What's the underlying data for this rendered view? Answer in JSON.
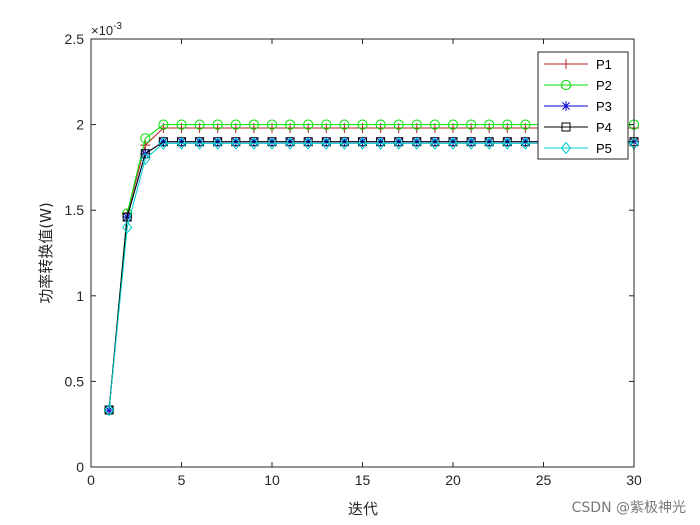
{
  "chart_data": {
    "type": "line",
    "title": "",
    "xlabel": "迭代",
    "ylabel": "功率转换值(W)",
    "xlim": [
      0,
      30
    ],
    "ylim": [
      0,
      0.0025
    ],
    "xticks": [
      0,
      5,
      10,
      15,
      20,
      25,
      30
    ],
    "xtick_labels": [
      "0",
      "5",
      "10",
      "15",
      "20",
      "25",
      "30"
    ],
    "yticks": [
      0,
      0.0005,
      0.001,
      0.0015,
      0.002,
      0.0025
    ],
    "ytick_labels": [
      "0",
      "0.5",
      "1",
      "1.5",
      "2",
      "2.5"
    ],
    "y_exponent_label": "×10",
    "y_exponent_power": "-3",
    "legend_position": "top-right",
    "grid": false,
    "series": [
      {
        "name": "P1",
        "color": "#b22222",
        "marker": "plus",
        "x": [
          1,
          2,
          3,
          4,
          5,
          6,
          7,
          8,
          9,
          10,
          11,
          12,
          13,
          14,
          15,
          16,
          17,
          18,
          19,
          20,
          21,
          22,
          23,
          24,
          25,
          26,
          27,
          28,
          29,
          30
        ],
        "y": [
          0.000333,
          0.00148,
          0.00188,
          0.00198,
          0.00198,
          0.00198,
          0.00198,
          0.00198,
          0.00198,
          0.00198,
          0.00198,
          0.00198,
          0.00198,
          0.00198,
          0.00198,
          0.00198,
          0.00198,
          0.00198,
          0.00198,
          0.00198,
          0.00198,
          0.00198,
          0.00198,
          0.00198,
          0.00198,
          0.00198,
          0.00198,
          0.00198,
          0.00198,
          0.00198
        ]
      },
      {
        "name": "P2",
        "color": "#00e000",
        "marker": "circle",
        "x": [
          1,
          2,
          3,
          4,
          5,
          6,
          7,
          8,
          9,
          10,
          11,
          12,
          13,
          14,
          15,
          16,
          17,
          18,
          19,
          20,
          21,
          22,
          23,
          24,
          25,
          26,
          27,
          28,
          29,
          30
        ],
        "y": [
          0.000333,
          0.00148,
          0.00192,
          0.002,
          0.002,
          0.002,
          0.002,
          0.002,
          0.002,
          0.002,
          0.002,
          0.002,
          0.002,
          0.002,
          0.002,
          0.002,
          0.002,
          0.002,
          0.002,
          0.002,
          0.002,
          0.002,
          0.002,
          0.002,
          0.002,
          0.002,
          0.002,
          0.002,
          0.002,
          0.002
        ]
      },
      {
        "name": "P3",
        "color": "#0000cc",
        "marker": "star",
        "x": [
          1,
          2,
          3,
          4,
          5,
          6,
          7,
          8,
          9,
          10,
          11,
          12,
          13,
          14,
          15,
          16,
          17,
          18,
          19,
          20,
          21,
          22,
          23,
          24,
          25,
          26,
          27,
          28,
          29,
          30
        ],
        "y": [
          0.000333,
          0.00146,
          0.00183,
          0.0019,
          0.0019,
          0.0019,
          0.0019,
          0.0019,
          0.0019,
          0.0019,
          0.0019,
          0.0019,
          0.0019,
          0.0019,
          0.0019,
          0.0019,
          0.0019,
          0.0019,
          0.0019,
          0.0019,
          0.0019,
          0.0019,
          0.0019,
          0.0019,
          0.0019,
          0.0019,
          0.0019,
          0.0019,
          0.0019,
          0.0019
        ]
      },
      {
        "name": "P4",
        "color": "#000000",
        "marker": "square",
        "x": [
          1,
          2,
          3,
          4,
          5,
          6,
          7,
          8,
          9,
          10,
          11,
          12,
          13,
          14,
          15,
          16,
          17,
          18,
          19,
          20,
          21,
          22,
          23,
          24,
          25,
          26,
          27,
          28,
          29,
          30
        ],
        "y": [
          0.000333,
          0.00146,
          0.00183,
          0.0019,
          0.0019,
          0.0019,
          0.0019,
          0.0019,
          0.0019,
          0.0019,
          0.0019,
          0.0019,
          0.0019,
          0.0019,
          0.0019,
          0.0019,
          0.0019,
          0.0019,
          0.0019,
          0.0019,
          0.0019,
          0.0019,
          0.0019,
          0.0019,
          0.0019,
          0.0019,
          0.0019,
          0.0019,
          0.0019,
          0.0019
        ]
      },
      {
        "name": "P5",
        "color": "#00cccc",
        "marker": "diamond",
        "x": [
          1,
          2,
          3,
          4,
          5,
          6,
          7,
          8,
          9,
          10,
          11,
          12,
          13,
          14,
          15,
          16,
          17,
          18,
          19,
          20,
          21,
          22,
          23,
          24,
          25,
          26,
          27,
          28,
          29,
          30
        ],
        "y": [
          0.000333,
          0.0014,
          0.0018,
          0.00189,
          0.00189,
          0.00189,
          0.00189,
          0.00189,
          0.00189,
          0.00189,
          0.00189,
          0.00189,
          0.00189,
          0.00189,
          0.00189,
          0.00189,
          0.00189,
          0.00189,
          0.00189,
          0.00189,
          0.00189,
          0.00189,
          0.00189,
          0.00189,
          0.00189,
          0.00189,
          0.00189,
          0.00189,
          0.00189,
          0.00189
        ]
      }
    ]
  },
  "watermark": "CSDN @紫极神光"
}
